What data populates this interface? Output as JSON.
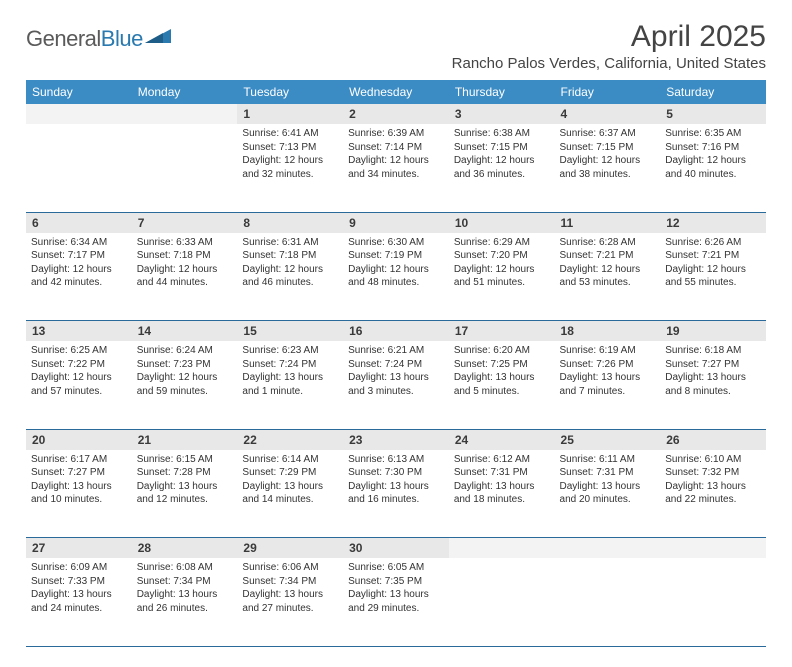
{
  "brand": {
    "text_part1": "General",
    "text_part2": "Blue",
    "color_general": "#5a5a5a",
    "color_blue": "#2a7ab0",
    "mark_fill": "#2a7ab0"
  },
  "title": "April 2025",
  "location": "Rancho Palos Verdes, California, United States",
  "header_bg": "#3b8bc4",
  "header_text_color": "#ffffff",
  "daynum_bg": "#e8e8e8",
  "row_border_color": "#2a6a9a",
  "day_headers": [
    "Sunday",
    "Monday",
    "Tuesday",
    "Wednesday",
    "Thursday",
    "Friday",
    "Saturday"
  ],
  "weeks": [
    {
      "numbers": [
        "",
        "",
        "1",
        "2",
        "3",
        "4",
        "5"
      ],
      "cells": [
        null,
        null,
        {
          "sunrise": "Sunrise: 6:41 AM",
          "sunset": "Sunset: 7:13 PM",
          "day1": "Daylight: 12 hours",
          "day2": "and 32 minutes."
        },
        {
          "sunrise": "Sunrise: 6:39 AM",
          "sunset": "Sunset: 7:14 PM",
          "day1": "Daylight: 12 hours",
          "day2": "and 34 minutes."
        },
        {
          "sunrise": "Sunrise: 6:38 AM",
          "sunset": "Sunset: 7:15 PM",
          "day1": "Daylight: 12 hours",
          "day2": "and 36 minutes."
        },
        {
          "sunrise": "Sunrise: 6:37 AM",
          "sunset": "Sunset: 7:15 PM",
          "day1": "Daylight: 12 hours",
          "day2": "and 38 minutes."
        },
        {
          "sunrise": "Sunrise: 6:35 AM",
          "sunset": "Sunset: 7:16 PM",
          "day1": "Daylight: 12 hours",
          "day2": "and 40 minutes."
        }
      ]
    },
    {
      "numbers": [
        "6",
        "7",
        "8",
        "9",
        "10",
        "11",
        "12"
      ],
      "cells": [
        {
          "sunrise": "Sunrise: 6:34 AM",
          "sunset": "Sunset: 7:17 PM",
          "day1": "Daylight: 12 hours",
          "day2": "and 42 minutes."
        },
        {
          "sunrise": "Sunrise: 6:33 AM",
          "sunset": "Sunset: 7:18 PM",
          "day1": "Daylight: 12 hours",
          "day2": "and 44 minutes."
        },
        {
          "sunrise": "Sunrise: 6:31 AM",
          "sunset": "Sunset: 7:18 PM",
          "day1": "Daylight: 12 hours",
          "day2": "and 46 minutes."
        },
        {
          "sunrise": "Sunrise: 6:30 AM",
          "sunset": "Sunset: 7:19 PM",
          "day1": "Daylight: 12 hours",
          "day2": "and 48 minutes."
        },
        {
          "sunrise": "Sunrise: 6:29 AM",
          "sunset": "Sunset: 7:20 PM",
          "day1": "Daylight: 12 hours",
          "day2": "and 51 minutes."
        },
        {
          "sunrise": "Sunrise: 6:28 AM",
          "sunset": "Sunset: 7:21 PM",
          "day1": "Daylight: 12 hours",
          "day2": "and 53 minutes."
        },
        {
          "sunrise": "Sunrise: 6:26 AM",
          "sunset": "Sunset: 7:21 PM",
          "day1": "Daylight: 12 hours",
          "day2": "and 55 minutes."
        }
      ]
    },
    {
      "numbers": [
        "13",
        "14",
        "15",
        "16",
        "17",
        "18",
        "19"
      ],
      "cells": [
        {
          "sunrise": "Sunrise: 6:25 AM",
          "sunset": "Sunset: 7:22 PM",
          "day1": "Daylight: 12 hours",
          "day2": "and 57 minutes."
        },
        {
          "sunrise": "Sunrise: 6:24 AM",
          "sunset": "Sunset: 7:23 PM",
          "day1": "Daylight: 12 hours",
          "day2": "and 59 minutes."
        },
        {
          "sunrise": "Sunrise: 6:23 AM",
          "sunset": "Sunset: 7:24 PM",
          "day1": "Daylight: 13 hours",
          "day2": "and 1 minute."
        },
        {
          "sunrise": "Sunrise: 6:21 AM",
          "sunset": "Sunset: 7:24 PM",
          "day1": "Daylight: 13 hours",
          "day2": "and 3 minutes."
        },
        {
          "sunrise": "Sunrise: 6:20 AM",
          "sunset": "Sunset: 7:25 PM",
          "day1": "Daylight: 13 hours",
          "day2": "and 5 minutes."
        },
        {
          "sunrise": "Sunrise: 6:19 AM",
          "sunset": "Sunset: 7:26 PM",
          "day1": "Daylight: 13 hours",
          "day2": "and 7 minutes."
        },
        {
          "sunrise": "Sunrise: 6:18 AM",
          "sunset": "Sunset: 7:27 PM",
          "day1": "Daylight: 13 hours",
          "day2": "and 8 minutes."
        }
      ]
    },
    {
      "numbers": [
        "20",
        "21",
        "22",
        "23",
        "24",
        "25",
        "26"
      ],
      "cells": [
        {
          "sunrise": "Sunrise: 6:17 AM",
          "sunset": "Sunset: 7:27 PM",
          "day1": "Daylight: 13 hours",
          "day2": "and 10 minutes."
        },
        {
          "sunrise": "Sunrise: 6:15 AM",
          "sunset": "Sunset: 7:28 PM",
          "day1": "Daylight: 13 hours",
          "day2": "and 12 minutes."
        },
        {
          "sunrise": "Sunrise: 6:14 AM",
          "sunset": "Sunset: 7:29 PM",
          "day1": "Daylight: 13 hours",
          "day2": "and 14 minutes."
        },
        {
          "sunrise": "Sunrise: 6:13 AM",
          "sunset": "Sunset: 7:30 PM",
          "day1": "Daylight: 13 hours",
          "day2": "and 16 minutes."
        },
        {
          "sunrise": "Sunrise: 6:12 AM",
          "sunset": "Sunset: 7:31 PM",
          "day1": "Daylight: 13 hours",
          "day2": "and 18 minutes."
        },
        {
          "sunrise": "Sunrise: 6:11 AM",
          "sunset": "Sunset: 7:31 PM",
          "day1": "Daylight: 13 hours",
          "day2": "and 20 minutes."
        },
        {
          "sunrise": "Sunrise: 6:10 AM",
          "sunset": "Sunset: 7:32 PM",
          "day1": "Daylight: 13 hours",
          "day2": "and 22 minutes."
        }
      ]
    },
    {
      "numbers": [
        "27",
        "28",
        "29",
        "30",
        "",
        "",
        ""
      ],
      "cells": [
        {
          "sunrise": "Sunrise: 6:09 AM",
          "sunset": "Sunset: 7:33 PM",
          "day1": "Daylight: 13 hours",
          "day2": "and 24 minutes."
        },
        {
          "sunrise": "Sunrise: 6:08 AM",
          "sunset": "Sunset: 7:34 PM",
          "day1": "Daylight: 13 hours",
          "day2": "and 26 minutes."
        },
        {
          "sunrise": "Sunrise: 6:06 AM",
          "sunset": "Sunset: 7:34 PM",
          "day1": "Daylight: 13 hours",
          "day2": "and 27 minutes."
        },
        {
          "sunrise": "Sunrise: 6:05 AM",
          "sunset": "Sunset: 7:35 PM",
          "day1": "Daylight: 13 hours",
          "day2": "and 29 minutes."
        },
        null,
        null,
        null
      ]
    }
  ]
}
